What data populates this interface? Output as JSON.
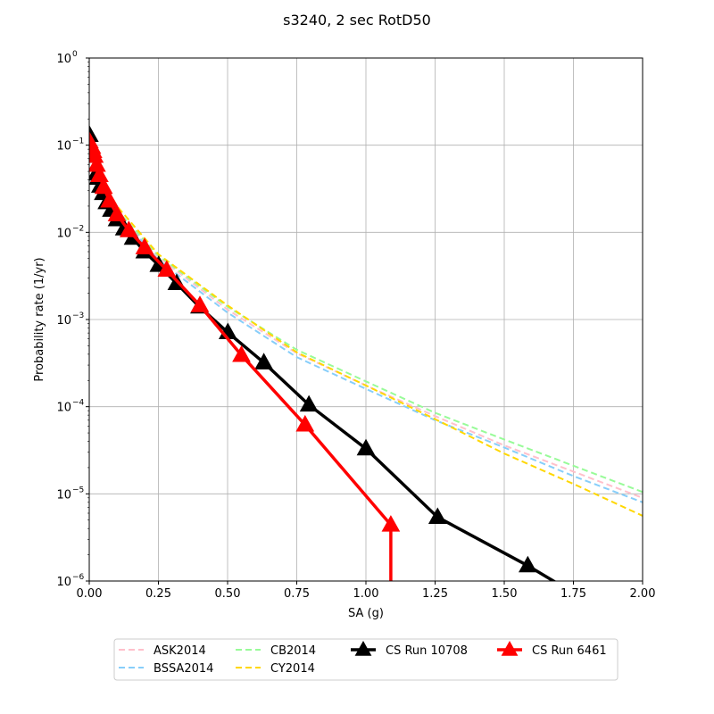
{
  "chart_data": {
    "type": "line",
    "title": "s3240, 2 sec RotD50",
    "xlabel": "SA (g)",
    "ylabel": "Probability rate (1/yr)",
    "xlim": [
      0,
      2
    ],
    "ylim": [
      1e-06,
      1
    ],
    "yscale": "log",
    "grid": true,
    "legend_placement": "bottom-center, below plot",
    "xticks": [
      "0.00",
      "0.25",
      "0.50",
      "0.75",
      "1.00",
      "1.25",
      "1.50",
      "1.75",
      "2.00"
    ],
    "yticks": [
      {
        "base": "10",
        "exp": "−6"
      },
      {
        "base": "10",
        "exp": "−5"
      },
      {
        "base": "10",
        "exp": "−4"
      },
      {
        "base": "10",
        "exp": "−3"
      },
      {
        "base": "10",
        "exp": "−2"
      },
      {
        "base": "10",
        "exp": "−1"
      },
      {
        "base": "10",
        "exp": "0"
      }
    ],
    "series": [
      {
        "name": "ASK2014",
        "color": "#ffc0cb",
        "style": "dashed",
        "x": [
          0.001,
          0.01,
          0.05,
          0.1,
          0.25,
          0.5,
          0.75,
          1.0,
          1.25,
          1.5,
          1.75,
          2.0
        ],
        "y": [
          0.13,
          0.095,
          0.035,
          0.018,
          0.0052,
          0.0013,
          0.00041,
          0.000175,
          7.8e-05,
          3.6e-05,
          1.8e-05,
          9e-06
        ]
      },
      {
        "name": "BSSA2014",
        "color": "#87cefa",
        "style": "dashed",
        "x": [
          0.001,
          0.01,
          0.05,
          0.1,
          0.25,
          0.5,
          0.75,
          1.0,
          1.25,
          1.5,
          1.75,
          2.0
        ],
        "y": [
          0.13,
          0.095,
          0.034,
          0.017,
          0.0048,
          0.0012,
          0.00037,
          0.00016,
          7e-05,
          3.4e-05,
          1.6e-05,
          8e-06
        ]
      },
      {
        "name": "CB2014",
        "color": "#98fb98",
        "style": "dashed",
        "x": [
          0.001,
          0.01,
          0.05,
          0.1,
          0.25,
          0.5,
          0.75,
          1.0,
          1.25,
          1.5,
          1.75,
          2.0
        ],
        "y": [
          0.13,
          0.095,
          0.035,
          0.018,
          0.0054,
          0.0014,
          0.00045,
          0.000195,
          8.5e-05,
          4.2e-05,
          2.1e-05,
          1.05e-05
        ]
      },
      {
        "name": "CY2014",
        "color": "#ffd700",
        "style": "dashed",
        "x": [
          0.001,
          0.01,
          0.05,
          0.1,
          0.25,
          0.5,
          0.75,
          1.0,
          1.25,
          1.5,
          1.75,
          2.0
        ],
        "y": [
          0.13,
          0.1,
          0.038,
          0.02,
          0.0056,
          0.00145,
          0.00042,
          0.000175,
          7.2e-05,
          2.9e-05,
          1.3e-05,
          5.6e-06
        ]
      },
      {
        "name": "CS Run 10708",
        "color": "#000000",
        "style": "solid",
        "marker": "triangle",
        "x": [
          0.001,
          0.0126,
          0.0251,
          0.0316,
          0.0398,
          0.0501,
          0.0631,
          0.0794,
          0.1,
          0.126,
          0.158,
          0.2,
          0.251,
          0.316,
          0.398,
          0.501,
          0.631,
          0.794,
          1.0,
          1.259,
          1.585,
          1.995
        ],
        "y": [
          0.13,
          0.075,
          0.047,
          0.042,
          0.034,
          0.028,
          0.022,
          0.018,
          0.014,
          0.011,
          0.0086,
          0.006,
          0.0042,
          0.0026,
          0.0014,
          0.00071,
          0.00032,
          0.000105,
          3.3e-05,
          5.4e-06,
          1.5e-06,
          2.5e-07
        ]
      },
      {
        "name": "CS Run 6461",
        "color": "#ff0000",
        "style": "solid",
        "marker": "triangle",
        "x": [
          0.001,
          0.01,
          0.014,
          0.019,
          0.027,
          0.037,
          0.052,
          0.073,
          0.1,
          0.143,
          0.2,
          0.28,
          0.4,
          0.55,
          0.78,
          1.09,
          1.09
        ],
        "y": [
          0.11,
          0.095,
          0.085,
          0.075,
          0.059,
          0.045,
          0.033,
          0.023,
          0.016,
          0.0105,
          0.0067,
          0.0037,
          0.00145,
          0.00039,
          6.2e-05,
          4.4e-06,
          1e-07
        ]
      }
    ]
  }
}
